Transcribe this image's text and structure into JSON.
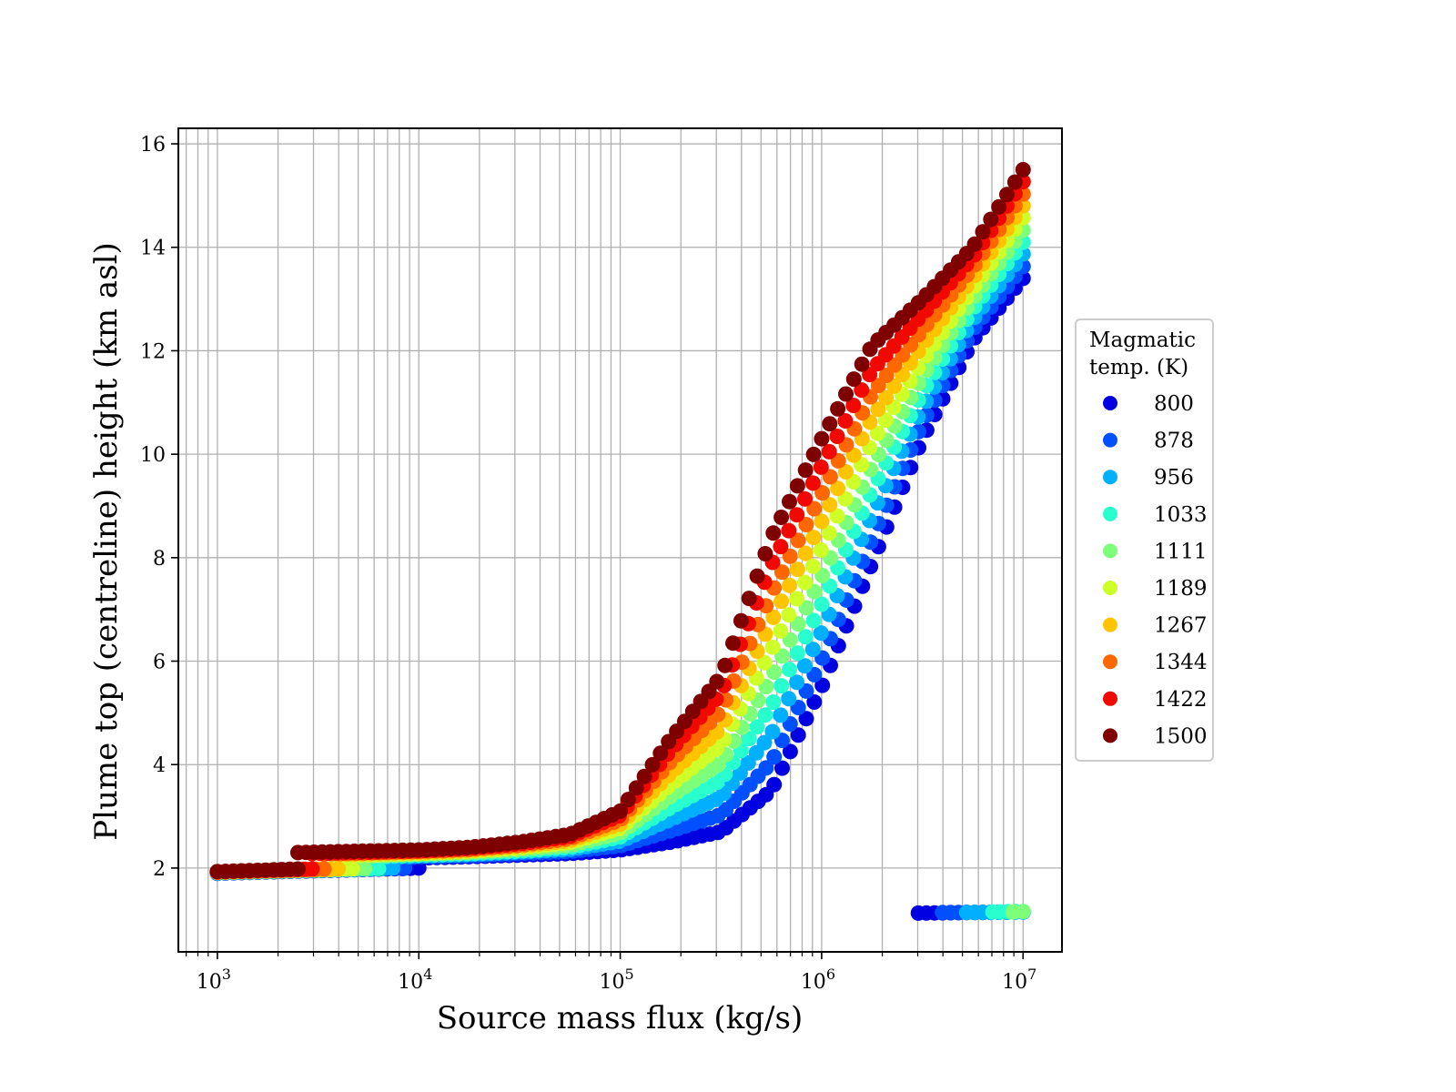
{
  "chart_data": {
    "type": "scatter",
    "title": "",
    "xlabel": "Source mass flux (kg/s)",
    "ylabel": "Plume top (centreline) height (km asl)",
    "xscale": "log",
    "xlim": [
      640,
      15600000
    ],
    "ylim": [
      0.38,
      16.3
    ],
    "x_ticks": [
      {
        "base": "10",
        "exp": "3",
        "value": 1000
      },
      {
        "base": "10",
        "exp": "4",
        "value": 10000
      },
      {
        "base": "10",
        "exp": "5",
        "value": 100000
      },
      {
        "base": "10",
        "exp": "6",
        "value": 1000000
      },
      {
        "base": "10",
        "exp": "7",
        "value": 10000000
      }
    ],
    "y_ticks": [
      "2",
      "4",
      "6",
      "8",
      "10",
      "12",
      "14",
      "16"
    ],
    "grid": true,
    "legend": {
      "title_line1": "Magmatic",
      "title_line2": "temp. (K)",
      "placement": "right-outside"
    },
    "knot_note_log10x": [
      4.0,
      4.25,
      4.5,
      4.75,
      5.0,
      5.25,
      5.5,
      5.75,
      6.0,
      6.25,
      6.5,
      6.75,
      7.0
    ],
    "series": [
      {
        "name": "800",
        "color": "#0000e0",
        "segments": [
          {
            "log10x": [
              3.0,
              4.0
            ],
            "y": [
              1.9,
              2.0
            ]
          },
          {
            "log10x": [
              4.05,
              4.25,
              4.5,
              4.75,
              5.0,
              5.25,
              5.5,
              5.75,
              6.0,
              6.25,
              6.5,
              6.75,
              7.0
            ],
            "y": [
              2.2,
              2.22,
              2.25,
              2.28,
              2.35,
              2.5,
              2.7,
              3.5,
              5.5,
              7.9,
              10.3,
              12.2,
              13.4
            ]
          },
          {
            "log10x": [
              6.48,
              7.0
            ],
            "y": [
              1.13,
              1.15
            ]
          }
        ]
      },
      {
        "name": "878",
        "color": "#0050ff",
        "segments": [
          {
            "log10x": [
              3.0,
              3.93
            ],
            "y": [
              1.9,
              2.0
            ]
          },
          {
            "log10x": [
              3.93,
              4.0,
              4.25,
              4.5,
              4.75,
              5.0,
              5.25,
              5.5,
              5.75,
              6.0,
              6.25,
              6.5,
              6.75,
              7.0
            ],
            "y": [
              2.2,
              2.22,
              2.24,
              2.28,
              2.32,
              2.43,
              2.72,
              3.03,
              4.04,
              6.03,
              8.37,
              10.6,
              12.4,
              13.63
            ]
          },
          {
            "log10x": [
              6.6,
              7.0
            ],
            "y": [
              1.14,
              1.15
            ]
          }
        ]
      },
      {
        "name": "956",
        "color": "#00b0ff",
        "segments": [
          {
            "log10x": [
              3.0,
              3.87
            ],
            "y": [
              1.91,
              2.0
            ]
          },
          {
            "log10x": [
              3.87,
              4.0,
              4.25,
              4.5,
              4.75,
              5.0,
              5.25,
              5.5,
              5.75,
              6.0,
              6.25,
              6.5,
              6.75,
              7.0
            ],
            "y": [
              2.21,
              2.23,
              2.26,
              2.31,
              2.36,
              2.52,
              2.94,
              3.37,
              4.59,
              6.57,
              8.83,
              10.9,
              12.6,
              13.87
            ]
          },
          {
            "log10x": [
              6.72,
              7.0
            ],
            "y": [
              1.14,
              1.15
            ]
          }
        ]
      },
      {
        "name": "1033",
        "color": "#29ffce",
        "segments": [
          {
            "log10x": [
              3.0,
              3.8
            ],
            "y": [
              1.91,
              1.99
            ]
          },
          {
            "log10x": [
              3.8,
              4.0,
              4.25,
              4.5,
              4.75,
              5.0,
              5.25,
              5.5,
              5.75,
              6.0,
              6.25,
              6.5,
              6.75,
              7.0
            ],
            "y": [
              2.22,
              2.25,
              2.28,
              2.33,
              2.4,
              2.6,
              3.17,
              3.7,
              5.13,
              7.1,
              9.3,
              11.2,
              12.8,
              14.1
            ]
          },
          {
            "log10x": [
              6.85,
              7.0
            ],
            "y": [
              1.15,
              1.16
            ]
          }
        ]
      },
      {
        "name": "1111",
        "color": "#7dff7a",
        "segments": [
          {
            "log10x": [
              3.0,
              3.73
            ],
            "y": [
              1.91,
              1.99
            ]
          },
          {
            "log10x": [
              3.73,
              4.0,
              4.25,
              4.5,
              4.75,
              5.0,
              5.25,
              5.5,
              5.75,
              6.0,
              6.25,
              6.5,
              6.75,
              7.0
            ],
            "y": [
              2.23,
              2.27,
              2.3,
              2.36,
              2.44,
              2.68,
              3.39,
              4.03,
              5.68,
              7.63,
              9.77,
              11.5,
              13.0,
              14.33
            ]
          },
          {
            "log10x": [
              6.95,
              7.0
            ],
            "y": [
              1.15,
              1.16
            ]
          }
        ]
      },
      {
        "name": "1189",
        "color": "#ceff29",
        "segments": [
          {
            "log10x": [
              3.0,
              3.67
            ],
            "y": [
              1.92,
              1.99
            ]
          },
          {
            "log10x": [
              3.67,
              4.0,
              4.25,
              4.5,
              4.75,
              5.0,
              5.25,
              5.5,
              5.75,
              6.0,
              6.25,
              6.5,
              6.75,
              7.0
            ],
            "y": [
              2.24,
              2.28,
              2.32,
              2.39,
              2.49,
              2.77,
              3.61,
              4.37,
              6.22,
              8.17,
              10.23,
              11.8,
              13.2,
              14.57
            ]
          }
        ]
      },
      {
        "name": "1267",
        "color": "#ffc400",
        "segments": [
          {
            "log10x": [
              3.0,
              3.6
            ],
            "y": [
              1.92,
              1.98
            ]
          },
          {
            "log10x": [
              3.6,
              4.0,
              4.25,
              4.5,
              4.75,
              5.0,
              5.25,
              5.5,
              5.75,
              6.0,
              6.25,
              6.5,
              6.75,
              7.0
            ],
            "y": [
              2.26,
              2.3,
              2.34,
              2.42,
              2.53,
              2.85,
              3.83,
              4.7,
              6.77,
              8.7,
              10.7,
              12.1,
              13.4,
              14.8
            ]
          }
        ]
      },
      {
        "name": "1344",
        "color": "#ff6800",
        "segments": [
          {
            "log10x": [
              3.0,
              3.53
            ],
            "y": [
              1.92,
              1.98
            ]
          },
          {
            "log10x": [
              3.53,
              4.0,
              4.25,
              4.5,
              4.75,
              5.0,
              5.25,
              5.5,
              5.75,
              6.0,
              6.25,
              6.5,
              6.75,
              7.0
            ],
            "y": [
              2.27,
              2.32,
              2.36,
              2.44,
              2.57,
              2.93,
              4.06,
              5.03,
              7.31,
              9.23,
              11.17,
              12.4,
              13.6,
              15.03
            ]
          }
        ]
      },
      {
        "name": "1422",
        "color": "#f10800",
        "segments": [
          {
            "log10x": [
              3.0,
              3.47
            ],
            "y": [
              1.93,
              1.98
            ]
          },
          {
            "log10x": [
              3.47,
              4.0,
              4.25,
              4.5,
              4.75,
              5.0,
              5.25,
              5.5,
              5.75,
              6.0,
              6.25,
              6.5,
              6.75,
              7.0
            ],
            "y": [
              2.28,
              2.33,
              2.38,
              2.47,
              2.61,
              3.02,
              4.28,
              5.37,
              7.86,
              9.77,
              11.63,
              12.7,
              13.8,
              15.27
            ]
          }
        ]
      },
      {
        "name": "1500",
        "color": "#7f0000",
        "segments": [
          {
            "log10x": [
              3.0,
              3.4
            ],
            "y": [
              1.93,
              1.98
            ]
          },
          {
            "log10x": [
              3.4,
              4.0,
              4.25,
              4.5,
              4.75,
              5.0,
              5.25,
              5.5,
              5.75,
              6.0,
              6.25,
              6.5,
              6.75,
              7.0
            ],
            "y": [
              2.3,
              2.35,
              2.4,
              2.5,
              2.65,
              3.1,
              4.5,
              5.7,
              8.4,
              10.3,
              12.1,
              13.0,
              14.0,
              15.5
            ]
          }
        ]
      }
    ]
  }
}
